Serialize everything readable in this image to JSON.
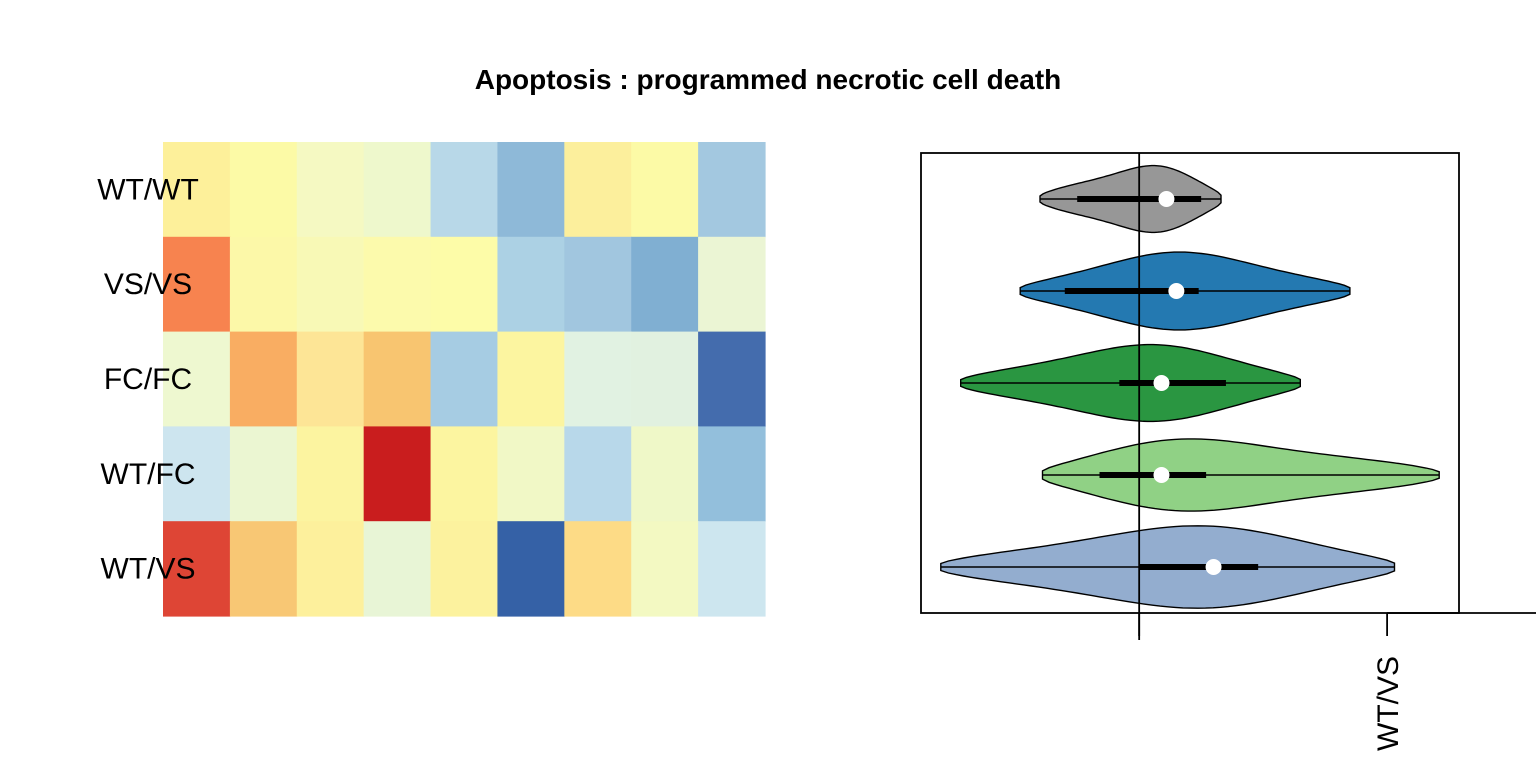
{
  "chart_data": [
    {
      "type": "heatmap",
      "title": "Apoptosis : programmed necrotic cell death",
      "rows": [
        "WT/WT",
        "VS/VS",
        "FC/FC",
        "WT/FC",
        "WT/VS"
      ],
      "n_columns": 9,
      "colors": [
        [
          "#fdf09a",
          "#fcfaa6",
          "#f5f9c2",
          "#eef8cc",
          "#b8d8e8",
          "#8eb9d8",
          "#fcef9c",
          "#fcfaa6",
          "#a3c8e0"
        ],
        [
          "#f7834f",
          "#fcf8a8",
          "#f8f9b6",
          "#fcfaac",
          "#fdfca8",
          "#acd1e4",
          "#a1c6df",
          "#80afd2",
          "#ebf5d4"
        ],
        [
          "#eef8d0",
          "#f9ad62",
          "#fde596",
          "#f8c570",
          "#a6cce3",
          "#fcf5a0",
          "#e1f2e2",
          "#e1f1e0",
          "#446cad"
        ],
        [
          "#cde5ef",
          "#ebf6d2",
          "#fcf4a0",
          "#c91d1e",
          "#fcf5a0",
          "#f1f8c6",
          "#b8d8ea",
          "#eff8c8",
          "#93bfdc"
        ],
        [
          "#de4535",
          "#f8c774",
          "#fdf09c",
          "#e8f5d6",
          "#fcf29e",
          "#3561a6",
          "#fddb86",
          "#f3f9c2",
          "#cde6ef"
        ]
      ]
    },
    {
      "type": "violin",
      "orientation": "horizontal",
      "x_ticks": [
        {
          "value": 0,
          "label": ""
        },
        {
          "value": 1,
          "label": "WT/VS"
        }
      ],
      "xlim": [
        -0.88,
        1.29
      ],
      "reference_line_x": 0,
      "series": [
        {
          "name": "WT/WT",
          "color": "#979797",
          "min": -0.4,
          "max": 0.33,
          "q1": -0.25,
          "q3": 0.25,
          "median": 0.11,
          "density_max": 0.12
        },
        {
          "name": "VS/VS",
          "color": "#2479b1",
          "min": -0.48,
          "max": 0.85,
          "q1": -0.3,
          "q3": 0.24,
          "median": 0.15,
          "density_max": 0.13
        },
        {
          "name": "FC/FC",
          "color": "#2a9641",
          "min": -0.72,
          "max": 0.65,
          "q1": -0.08,
          "q3": 0.35,
          "median": 0.09,
          "density_max": 0.13
        },
        {
          "name": "WT/FC",
          "color": "#90d185",
          "min": -0.39,
          "max": 1.21,
          "q1": -0.16,
          "q3": 0.27,
          "median": 0.09,
          "density_max": 0.13
        },
        {
          "name": "WT/VS",
          "color": "#93adcf",
          "min": -0.8,
          "max": 1.03,
          "q1": 0.0,
          "q3": 0.48,
          "median": 0.3,
          "density_max": 0.14
        }
      ]
    }
  ]
}
